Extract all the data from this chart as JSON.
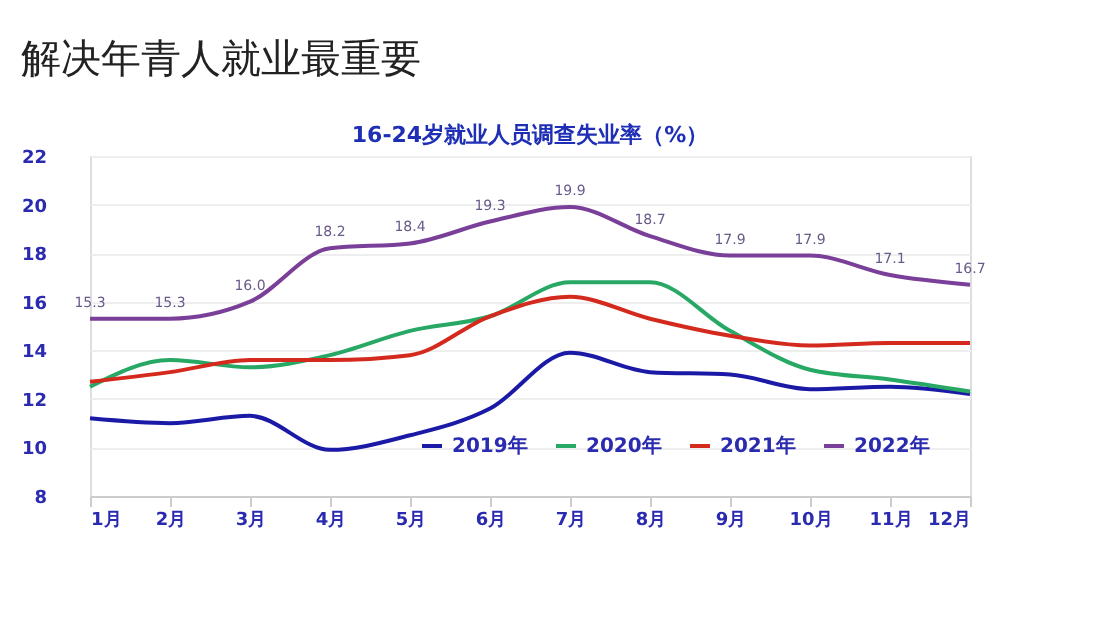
{
  "chart_data": {
    "type": "line",
    "title": "解决年青人就业最重要",
    "subtitle": "16-24岁就业人员调查失业率（%）",
    "categories": [
      "1月",
      "2月",
      "3月",
      "4月",
      "5月",
      "6月",
      "7月",
      "8月",
      "9月",
      "10月",
      "11月",
      "12月"
    ],
    "series": [
      {
        "name": "2019年",
        "color": "#1a1aa6",
        "values": [
          11.2,
          11.0,
          11.3,
          9.9,
          10.5,
          11.6,
          13.9,
          13.1,
          13.0,
          12.4,
          12.5,
          12.2
        ]
      },
      {
        "name": "2020年",
        "color": "#27a865",
        "values": [
          12.5,
          13.6,
          13.3,
          13.8,
          14.8,
          15.4,
          16.8,
          16.8,
          14.8,
          13.2,
          12.8,
          12.3
        ]
      },
      {
        "name": "2021年",
        "color": "#d42a1e",
        "values": [
          12.7,
          13.1,
          13.6,
          13.6,
          13.8,
          15.4,
          16.2,
          15.3,
          14.6,
          14.2,
          14.3,
          14.3
        ]
      },
      {
        "name": "2022年",
        "color": "#7a3f98",
        "values": [
          15.3,
          15.3,
          16.0,
          18.2,
          18.4,
          19.3,
          19.9,
          18.7,
          17.9,
          17.9,
          17.1,
          16.7
        ],
        "value_labels": [
          "15.3",
          "15.3",
          "16.0",
          "18.2",
          "18.4",
          "19.3",
          "19.9",
          "18.7",
          "17.9",
          "17.9",
          "17.1",
          "16.7"
        ]
      }
    ],
    "ylim": [
      8,
      22
    ],
    "yticks": [
      8,
      10,
      12,
      14,
      16,
      18,
      20,
      22
    ],
    "grid": "y",
    "legend": "bottom right",
    "marker": "none",
    "line_style": "solid"
  }
}
